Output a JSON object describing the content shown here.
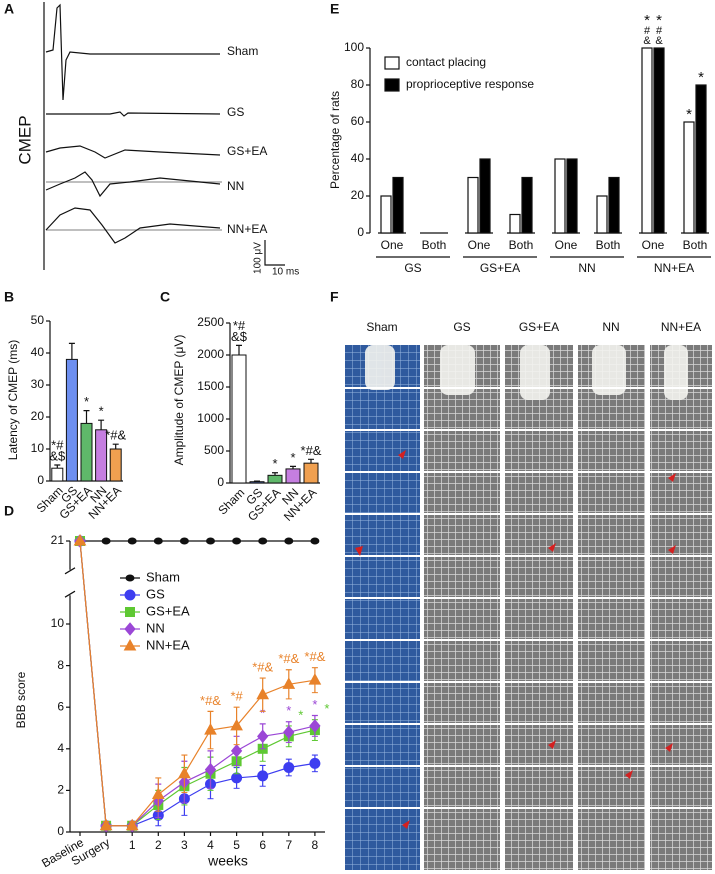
{
  "panel_labels": [
    "A",
    "B",
    "C",
    "D",
    "E",
    "F"
  ],
  "cmep": {
    "ylabel": "CMEP",
    "traces": [
      "Sham",
      "GS",
      "GS+EA",
      "NN",
      "NN+EA"
    ],
    "scale_y": "100 μV",
    "scale_x": "10 ms"
  },
  "photos": {
    "columns": [
      "Sham",
      "GS",
      "GS+EA",
      "NN",
      "NN+EA"
    ]
  },
  "chart_data": [
    {
      "type": "bar",
      "ylabel": "Latency of CMEP (ms)",
      "categories": [
        "Sham",
        "GS",
        "GS+EA",
        "NN",
        "NN+EA"
      ],
      "values": [
        4,
        38,
        18,
        16,
        10
      ],
      "errors": [
        1,
        5,
        4,
        3,
        1.5
      ],
      "colors": [
        "#ffffff",
        "#6d8ff0",
        "#5fb86a",
        "#c57ee0",
        "#f0a050"
      ],
      "annotations": [
        [
          "*#",
          "&$"
        ],
        null,
        [
          "*"
        ],
        [
          "*"
        ],
        [
          "*#&"
        ]
      ],
      "ylim": [
        0,
        50
      ],
      "yticks": [
        0,
        10,
        20,
        30,
        40,
        50
      ]
    },
    {
      "type": "bar",
      "ylabel": "Amplitude of CMEP (μV)",
      "categories": [
        "Sham",
        "GS",
        "GS+EA",
        "NN",
        "NN+EA"
      ],
      "values": [
        2000,
        20,
        120,
        220,
        310
      ],
      "errors": [
        150,
        10,
        40,
        40,
        60
      ],
      "colors": [
        "#ffffff",
        "#6d8ff0",
        "#5fb86a",
        "#c57ee0",
        "#f0a050"
      ],
      "annotations": [
        [
          "*#",
          "&$"
        ],
        null,
        [
          "*"
        ],
        [
          "*"
        ],
        [
          "*#&"
        ]
      ],
      "ylim": [
        0,
        2500
      ],
      "yticks": [
        0,
        500,
        1000,
        1500,
        2000,
        2500
      ]
    },
    {
      "type": "line",
      "ylabel": "BBB score",
      "xlabel": "weeks",
      "categories": [
        "Baseline",
        "Surgery",
        "1",
        "2",
        "3",
        "4",
        "5",
        "6",
        "7",
        "8"
      ],
      "ylim": [
        0,
        21
      ],
      "yticks": [
        0,
        2,
        4,
        6,
        8,
        10,
        21
      ],
      "ybreak": [
        11,
        20
      ],
      "series": [
        {
          "name": "Sham",
          "color": "#111111",
          "marker": "ellipse",
          "values": [
            21,
            21,
            21,
            21,
            21,
            21,
            21,
            21,
            21,
            21
          ]
        },
        {
          "name": "GS",
          "color": "#3d3df0",
          "marker": "circle",
          "values": [
            21,
            0.3,
            0.3,
            0.8,
            1.6,
            2.3,
            2.6,
            2.7,
            3.1,
            3.3
          ],
          "errors": [
            0,
            0.2,
            0.2,
            0.5,
            0.8,
            0.7,
            0.5,
            0.5,
            0.4,
            0.4
          ]
        },
        {
          "name": "GS+EA",
          "color": "#5ec832",
          "marker": "square",
          "values": [
            21,
            0.3,
            0.3,
            1.3,
            2.2,
            2.8,
            3.4,
            4.0,
            4.6,
            4.9
          ],
          "errors": [
            0,
            0.2,
            0.2,
            0.7,
            0.9,
            0.8,
            0.6,
            0.6,
            0.5,
            0.5
          ],
          "annotations": [
            null,
            null,
            null,
            null,
            null,
            null,
            null,
            null,
            "*",
            "*"
          ]
        },
        {
          "name": "NN",
          "color": "#9b47d6",
          "marker": "diamond",
          "values": [
            21,
            0.3,
            0.3,
            1.5,
            2.4,
            3.0,
            3.9,
            4.6,
            4.8,
            5.1
          ],
          "errors": [
            0,
            0.2,
            0.2,
            0.8,
            1.0,
            0.9,
            0.7,
            0.6,
            0.5,
            0.5
          ],
          "annotations": [
            null,
            null,
            null,
            null,
            null,
            null,
            null,
            "*",
            "*",
            "*"
          ]
        },
        {
          "name": "NN+EA",
          "color": "#e8822a",
          "marker": "triangle",
          "values": [
            21,
            0.3,
            0.3,
            1.8,
            2.8,
            4.9,
            5.1,
            6.6,
            7.1,
            7.3
          ],
          "errors": [
            0,
            0.2,
            0.2,
            0.8,
            0.9,
            0.9,
            0.9,
            0.8,
            0.7,
            0.6
          ],
          "annotations": [
            null,
            null,
            null,
            null,
            null,
            "*#&",
            "*#",
            "*#&",
            "*#&",
            "*#&"
          ]
        }
      ]
    },
    {
      "type": "grouped_bar",
      "ylabel": "Percentage of rats",
      "categories": [
        "One",
        "Both",
        "One",
        "Both",
        "One",
        "Both",
        "One",
        "Both"
      ],
      "groups": [
        "GS",
        "GS+EA",
        "NN",
        "NN+EA"
      ],
      "ylim": [
        0,
        100
      ],
      "yticks": [
        0,
        20,
        40,
        60,
        80,
        100
      ],
      "series": [
        {
          "name": "contact placing",
          "color": "#ffffff",
          "values": [
            20,
            0,
            30,
            10,
            40,
            20,
            100,
            60
          ],
          "annotations": [
            null,
            null,
            null,
            null,
            null,
            null,
            [
              "*",
              "#",
              "&"
            ],
            [
              "*"
            ]
          ]
        },
        {
          "name": "proprioceptive response",
          "color": "#000000",
          "values": [
            30,
            0,
            40,
            30,
            40,
            30,
            100,
            80
          ],
          "annotations": [
            null,
            null,
            null,
            null,
            null,
            null,
            [
              "*",
              "#",
              "&"
            ],
            [
              "*"
            ]
          ]
        }
      ]
    }
  ]
}
